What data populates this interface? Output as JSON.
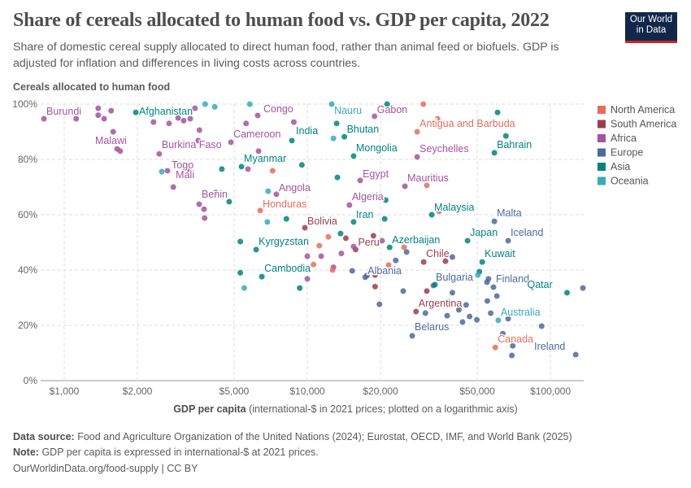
{
  "header": {
    "title": "Share of cereals allocated to human food vs. GDP per capita, 2022",
    "subtitle": "Share of domestic cereal supply allocated to direct human food, rather than animal feed or biofuels. GDP is adjusted for inflation and differences in living costs across countries.",
    "logo": "Our World in Data"
  },
  "footer": {
    "source_label": "Data source:",
    "source": "Food and Agriculture Organization of the United Nations (2024); Eurostat, OECD, IMF, and World Bank (2025)",
    "note_label": "Note:",
    "note": "GDP per capita is expressed in international-$ at 2021 prices.",
    "url": "OurWorldinData.org/food-supply | CC BY"
  },
  "chart_data": {
    "type": "scatter",
    "title": "Share of cereals allocated to human food vs. GDP per capita, 2022",
    "ylabel": "Cereals allocated to human food",
    "xlabel_bold": "GDP per capita",
    "xlabel_rest": "(international-$ in 2021 prices; plotted on a logarithmic axis)",
    "xscale": "log",
    "xlim": [
      800,
      137000
    ],
    "ylim": [
      0,
      100
    ],
    "grid": true,
    "legend_position": "right",
    "xticks": [
      {
        "v": 1000,
        "label": "$1,000"
      },
      {
        "v": 2000,
        "label": "$2,000"
      },
      {
        "v": 5000,
        "label": "$5,000"
      },
      {
        "v": 10000,
        "label": "$10,000"
      },
      {
        "v": 20000,
        "label": "$20,000"
      },
      {
        "v": 50000,
        "label": "$50,000"
      },
      {
        "v": 100000,
        "label": "$100,000"
      }
    ],
    "yticks": [
      {
        "v": 0,
        "label": "0%"
      },
      {
        "v": 20,
        "label": "20%"
      },
      {
        "v": 40,
        "label": "40%"
      },
      {
        "v": 60,
        "label": "60%"
      },
      {
        "v": 80,
        "label": "80%"
      },
      {
        "v": 100,
        "label": "100%"
      }
    ],
    "legend": [
      {
        "region": "North America",
        "color": "#e56e5a"
      },
      {
        "region": "South America",
        "color": "#9a3f4d"
      },
      {
        "region": "Africa",
        "color": "#a2559c"
      },
      {
        "region": "Europe",
        "color": "#4c6a9c"
      },
      {
        "region": "Asia",
        "color": "#00847e"
      },
      {
        "region": "Oceania",
        "color": "#38aaba"
      }
    ],
    "points": [
      {
        "label": "Burundi",
        "region": "Africa",
        "x": 825,
        "y": 94.7
      },
      {
        "label": "Afghanistan",
        "region": "Asia",
        "x": 1970,
        "y": 97
      },
      {
        "label": "Congo",
        "region": "Africa",
        "x": 6250,
        "y": 95.9
      },
      {
        "label": "Cameroon",
        "region": "Africa",
        "x": 4850,
        "y": 86.2
      },
      {
        "label": "India",
        "region": "Asia",
        "x": 8640,
        "y": 86.8
      },
      {
        "label": "Malawi",
        "region": "Africa",
        "x": 1650,
        "y": 83.8
      },
      {
        "label": "Burkina Faso",
        "region": "Africa",
        "x": 2460,
        "y": 82
      },
      {
        "label": "Myanmar",
        "region": "Asia",
        "x": 5360,
        "y": 77.4
      },
      {
        "label": "Togo",
        "region": "Africa",
        "x": 2660,
        "y": 75.9
      },
      {
        "label": "Mali",
        "region": "Africa",
        "x": 2810,
        "y": 70
      },
      {
        "label": "Benin",
        "region": "Africa",
        "x": 3590,
        "y": 63.8
      },
      {
        "label": "Angola",
        "region": "Africa",
        "x": 7460,
        "y": 67.4
      },
      {
        "label": "Honduras",
        "region": "North America",
        "x": 6400,
        "y": 61.5
      },
      {
        "label": "Bolivia",
        "region": "South America",
        "x": 9770,
        "y": 55.3
      },
      {
        "label": "Nauru",
        "region": "Oceania",
        "x": 12600,
        "y": 100
      },
      {
        "label": "Gabon",
        "region": "Africa",
        "x": 18900,
        "y": 95.6
      },
      {
        "label": "Antigua and Barbuda",
        "region": "North America",
        "x": 28300,
        "y": 90
      },
      {
        "label": "Bhutan",
        "region": "Asia",
        "x": 14200,
        "y": 88.2
      },
      {
        "label": "Mongolia",
        "region": "Asia",
        "x": 15500,
        "y": 81.2
      },
      {
        "label": "Seychelles",
        "region": "Africa",
        "x": 28300,
        "y": 80.9
      },
      {
        "label": "Bahrain",
        "region": "Asia",
        "x": 58800,
        "y": 82.4
      },
      {
        "label": "Egypt",
        "region": "Africa",
        "x": 16500,
        "y": 72.4
      },
      {
        "label": "Mauritius",
        "region": "Africa",
        "x": 25200,
        "y": 70.3
      },
      {
        "label": "Algeria",
        "region": "Africa",
        "x": 14900,
        "y": 63.5
      },
      {
        "label": "Malaysia",
        "region": "Asia",
        "x": 32500,
        "y": 60
      },
      {
        "label": "Iran",
        "region": "Asia",
        "x": 15500,
        "y": 57.4
      },
      {
        "label": "Malta",
        "region": "Europe",
        "x": 58800,
        "y": 57.6
      },
      {
        "label": "Japan",
        "region": "Asia",
        "x": 45600,
        "y": 50.6
      },
      {
        "label": "Iceland",
        "region": "Europe",
        "x": 67000,
        "y": 50.6
      },
      {
        "label": "Azerbaijan",
        "region": "Asia",
        "x": 21800,
        "y": 48.2
      },
      {
        "label": "Kyrgyzstan",
        "region": "Asia",
        "x": 6160,
        "y": 47.4
      },
      {
        "label": "Peru",
        "region": "South America",
        "x": 15800,
        "y": 47.4
      },
      {
        "label": "Chile",
        "region": "South America",
        "x": 30100,
        "y": 42.9
      },
      {
        "label": "Kuwait",
        "region": "Asia",
        "x": 52400,
        "y": 42.9
      },
      {
        "label": "Cambodia",
        "region": "Asia",
        "x": 6500,
        "y": 37.6
      },
      {
        "label": "Albania",
        "region": "Europe",
        "x": 17300,
        "y": 37.4
      },
      {
        "label": "Bulgaria",
        "region": "Europe",
        "x": 33000,
        "y": 34.4
      },
      {
        "label": "Finland",
        "region": "Europe",
        "x": 58300,
        "y": 33.8
      },
      {
        "label": "Qatar",
        "region": "Asia",
        "x": 117000,
        "y": 31.8
      },
      {
        "label": "Argentina",
        "region": "South America",
        "x": 28000,
        "y": 25
      },
      {
        "label": "Australia",
        "region": "Oceania",
        "x": 61000,
        "y": 21.8
      },
      {
        "label": "Belarus",
        "region": "Europe",
        "x": 27000,
        "y": 16.2
      },
      {
        "label": "Canada",
        "region": "North America",
        "x": 59300,
        "y": 12
      },
      {
        "label": "Ireland",
        "region": "Europe",
        "x": 127000,
        "y": 9.4
      },
      {
        "region": "Africa",
        "x": 1380,
        "y": 98.5
      },
      {
        "region": "Africa",
        "x": 1380,
        "y": 96
      },
      {
        "region": "Africa",
        "x": 1460,
        "y": 94.7
      },
      {
        "region": "Africa",
        "x": 1560,
        "y": 97.6
      },
      {
        "region": "Africa",
        "x": 1120,
        "y": 94.7
      },
      {
        "region": "Africa",
        "x": 1590,
        "y": 90
      },
      {
        "region": "Africa",
        "x": 1700,
        "y": 83
      },
      {
        "region": "Africa",
        "x": 2330,
        "y": 93.5
      },
      {
        "region": "Africa",
        "x": 2700,
        "y": 93
      },
      {
        "region": "Africa",
        "x": 2940,
        "y": 95
      },
      {
        "region": "Africa",
        "x": 3100,
        "y": 94
      },
      {
        "region": "Africa",
        "x": 3300,
        "y": 94.7
      },
      {
        "region": "Africa",
        "x": 3450,
        "y": 98.5
      },
      {
        "region": "Africa",
        "x": 3560,
        "y": 86.8
      },
      {
        "region": "Africa",
        "x": 3600,
        "y": 90.6
      },
      {
        "region": "Africa",
        "x": 3760,
        "y": 62
      },
      {
        "region": "Africa",
        "x": 3780,
        "y": 58.8
      },
      {
        "region": "Africa",
        "x": 3250,
        "y": 76.5
      },
      {
        "region": "Africa",
        "x": 5600,
        "y": 93
      },
      {
        "region": "Africa",
        "x": 6300,
        "y": 83
      },
      {
        "region": "Africa",
        "x": 5700,
        "y": 76.5
      },
      {
        "region": "Africa",
        "x": 8800,
        "y": 93.5
      },
      {
        "region": "Africa",
        "x": 10000,
        "y": 45
      },
      {
        "region": "Africa",
        "x": 10000,
        "y": 36.8
      },
      {
        "region": "Africa",
        "x": 11400,
        "y": 45
      },
      {
        "region": "Africa",
        "x": 12800,
        "y": 41
      },
      {
        "region": "Africa",
        "x": 13800,
        "y": 46
      },
      {
        "region": "Africa",
        "x": 15500,
        "y": 48.5
      },
      {
        "region": "Africa",
        "x": 20300,
        "y": 50.6
      },
      {
        "region": "Asia",
        "x": 4450,
        "y": 76.5
      },
      {
        "region": "Asia",
        "x": 4200,
        "y": 68
      },
      {
        "region": "Asia",
        "x": 4770,
        "y": 64.7
      },
      {
        "region": "Asia",
        "x": 5300,
        "y": 50.3
      },
      {
        "region": "Asia",
        "x": 5300,
        "y": 39
      },
      {
        "region": "Asia",
        "x": 8200,
        "y": 58.5
      },
      {
        "region": "Asia",
        "x": 9300,
        "y": 33.5
      },
      {
        "region": "Asia",
        "x": 9500,
        "y": 78
      },
      {
        "region": "Asia",
        "x": 13200,
        "y": 93
      },
      {
        "region": "Asia",
        "x": 13300,
        "y": 73.5
      },
      {
        "region": "Asia",
        "x": 16300,
        "y": 66
      },
      {
        "region": "Asia",
        "x": 21000,
        "y": 65.3
      },
      {
        "region": "Asia",
        "x": 20800,
        "y": 58.5
      },
      {
        "region": "Asia",
        "x": 21300,
        "y": 100
      },
      {
        "region": "Asia",
        "x": 60600,
        "y": 97
      },
      {
        "region": "Asia",
        "x": 65600,
        "y": 88.5
      },
      {
        "region": "Asia",
        "x": 33500,
        "y": 34.7
      },
      {
        "region": "Asia",
        "x": 51000,
        "y": 39.4
      },
      {
        "region": "Asia",
        "x": 13700,
        "y": 53.2
      },
      {
        "region": "North America",
        "x": 30000,
        "y": 100
      },
      {
        "region": "North America",
        "x": 34300,
        "y": 94.7
      },
      {
        "region": "North America",
        "x": 7200,
        "y": 75.9
      },
      {
        "region": "North America",
        "x": 12200,
        "y": 52
      },
      {
        "region": "North America",
        "x": 11200,
        "y": 48.8
      },
      {
        "region": "North America",
        "x": 10600,
        "y": 42
      },
      {
        "region": "North America",
        "x": 12700,
        "y": 40
      },
      {
        "region": "North America",
        "x": 21600,
        "y": 41.8
      },
      {
        "region": "North America",
        "x": 25000,
        "y": 48.2
      },
      {
        "region": "North America",
        "x": 31000,
        "y": 70.6
      },
      {
        "region": "North America",
        "x": 34800,
        "y": 61.2
      },
      {
        "region": "South America",
        "x": 18700,
        "y": 52.4
      },
      {
        "region": "South America",
        "x": 19000,
        "y": 38.2
      },
      {
        "region": "South America",
        "x": 14400,
        "y": 51.5
      },
      {
        "region": "South America",
        "x": 19000,
        "y": 34
      },
      {
        "region": "South America",
        "x": 31000,
        "y": 32.4
      },
      {
        "region": "South America",
        "x": 37000,
        "y": 43.2
      },
      {
        "region": "Europe",
        "x": 19800,
        "y": 27.6
      },
      {
        "region": "Europe",
        "x": 17600,
        "y": 38
      },
      {
        "region": "Europe",
        "x": 15300,
        "y": 39.7
      },
      {
        "region": "Europe",
        "x": 23100,
        "y": 43.5
      },
      {
        "region": "Europe",
        "x": 25600,
        "y": 46.5
      },
      {
        "region": "Europe",
        "x": 24800,
        "y": 32.4
      },
      {
        "region": "Europe",
        "x": 39500,
        "y": 44.7
      },
      {
        "region": "Europe",
        "x": 39500,
        "y": 31.8
      },
      {
        "region": "Europe",
        "x": 45000,
        "y": 27.4
      },
      {
        "region": "Europe",
        "x": 46500,
        "y": 23.2
      },
      {
        "region": "Europe",
        "x": 49800,
        "y": 22
      },
      {
        "region": "Europe",
        "x": 43500,
        "y": 21.2
      },
      {
        "region": "Europe",
        "x": 42000,
        "y": 25.6
      },
      {
        "region": "Europe",
        "x": 56800,
        "y": 24.4
      },
      {
        "region": "Europe",
        "x": 55000,
        "y": 28.8
      },
      {
        "region": "Europe",
        "x": 60200,
        "y": 30.6
      },
      {
        "region": "Europe",
        "x": 54800,
        "y": 35.6
      },
      {
        "region": "Europe",
        "x": 55600,
        "y": 36.8
      },
      {
        "region": "Europe",
        "x": 67000,
        "y": 22.4
      },
      {
        "region": "Europe",
        "x": 63700,
        "y": 17
      },
      {
        "region": "Europe",
        "x": 70000,
        "y": 12.6
      },
      {
        "region": "Europe",
        "x": 69400,
        "y": 9.1
      },
      {
        "region": "Europe",
        "x": 92000,
        "y": 19.7
      },
      {
        "region": "Europe",
        "x": 136000,
        "y": 33.5
      },
      {
        "region": "Europe",
        "x": 37600,
        "y": 23.5
      },
      {
        "region": "Europe",
        "x": 30600,
        "y": 24.4
      },
      {
        "region": "Oceania",
        "x": 3080,
        "y": 97
      },
      {
        "region": "Oceania",
        "x": 3800,
        "y": 100
      },
      {
        "region": "Oceania",
        "x": 4160,
        "y": 99
      },
      {
        "region": "Oceania",
        "x": 5800,
        "y": 100
      },
      {
        "region": "Oceania",
        "x": 12800,
        "y": 87.6
      },
      {
        "region": "Oceania",
        "x": 6900,
        "y": 68.5
      },
      {
        "region": "Oceania",
        "x": 6850,
        "y": 57.4
      },
      {
        "region": "Oceania",
        "x": 5500,
        "y": 33.5
      },
      {
        "region": "Oceania",
        "x": 2520,
        "y": 75.6
      },
      {
        "region": "Oceania",
        "x": 50300,
        "y": 38.2
      }
    ]
  }
}
